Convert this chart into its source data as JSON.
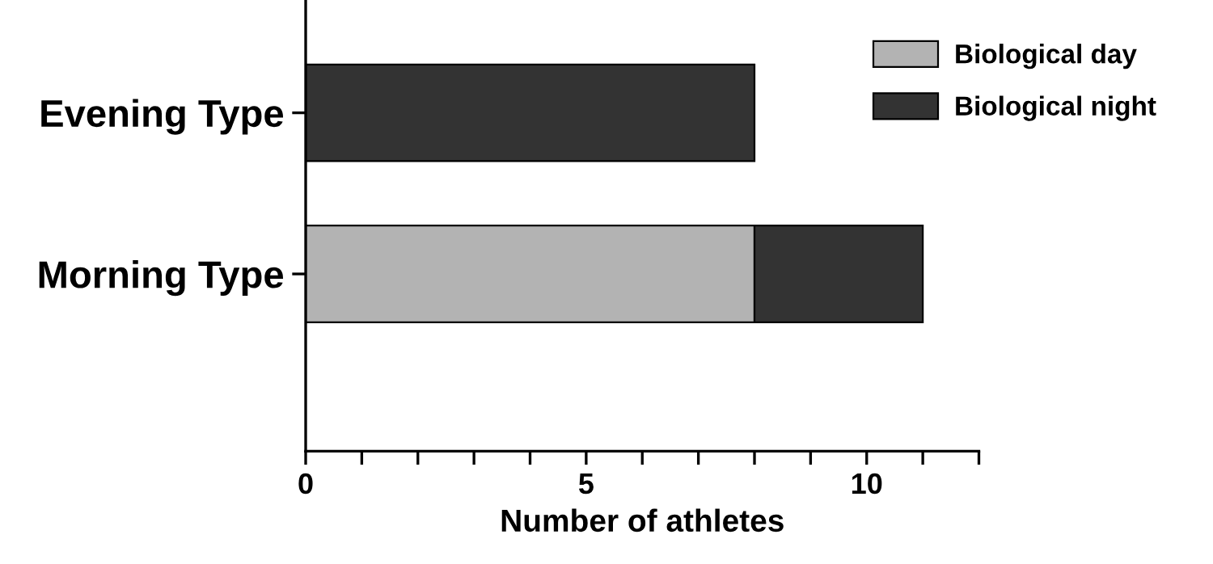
{
  "chart_data": {
    "type": "bar",
    "orientation": "horizontal",
    "stacked": true,
    "categories": [
      "Evening Type",
      "Morning Type"
    ],
    "series": [
      {
        "name": "Biological day",
        "color": "#b3b3b3",
        "values": [
          0,
          8
        ]
      },
      {
        "name": "Biological night",
        "color": "#333333",
        "values": [
          8,
          3
        ]
      }
    ],
    "xlabel": "Number of athletes",
    "xlim": [
      0,
      12
    ],
    "xticks": [
      0,
      {
        "value": 1,
        "label": null
      },
      {
        "value": 2,
        "label": null
      },
      {
        "value": 3,
        "label": null
      },
      {
        "value": 4,
        "label": null
      },
      5,
      {
        "value": 6,
        "label": null
      },
      {
        "value": 7,
        "label": null
      },
      {
        "value": 8,
        "label": null
      },
      {
        "value": 9,
        "label": null
      },
      10,
      {
        "value": 11,
        "label": null
      },
      {
        "value": 12,
        "label": null
      }
    ],
    "grid": false,
    "legend": "top right"
  }
}
